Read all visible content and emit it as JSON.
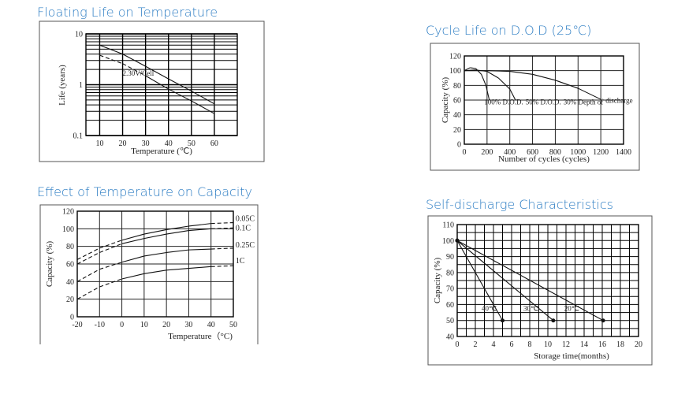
{
  "title_color": "#2b7cc3",
  "chart_data": [
    {
      "id": "floating",
      "type": "line",
      "title": "Floating Life on Temperature",
      "xlabel": "Temperature (℃)",
      "ylabel": "Life (years)",
      "xlim": [
        4,
        70
      ],
      "ylim": [
        0.1,
        10
      ],
      "yscale": "log",
      "xticks": [
        10,
        20,
        30,
        40,
        50,
        60
      ],
      "yticks": [
        {
          "v": 0.1,
          "label": "0.1"
        },
        {
          "v": 1,
          "label": "1"
        },
        {
          "v": 10,
          "label": "10"
        }
      ],
      "grid": true,
      "series": [
        {
          "x": [
            10,
            20,
            30,
            40,
            50,
            60
          ],
          "y": [
            6.0,
            4.0,
            2.3,
            1.3,
            0.75,
            0.42
          ]
        },
        {
          "x": [
            10,
            20,
            30,
            40,
            50,
            60
          ],
          "y": [
            3.8,
            2.6,
            1.5,
            0.82,
            0.48,
            0.27
          ]
        }
      ],
      "annotations": [
        {
          "text": "2.30V/Cell",
          "x": 20,
          "y": 1.5
        }
      ]
    },
    {
      "id": "cycle",
      "type": "line",
      "title": "Cycle Life on D.O.D (25℃)",
      "xlabel": "Number of cycles (cycles)",
      "ylabel": "Capacity (%)",
      "xlim": [
        0,
        1400
      ],
      "ylim": [
        0,
        120
      ],
      "xticks": [
        0,
        200,
        400,
        600,
        800,
        1000,
        1200,
        1400
      ],
      "yticks": [
        0,
        20,
        40,
        60,
        80,
        100,
        120
      ],
      "grid": true,
      "series": [
        {
          "name": "100% D.O.D.",
          "x": [
            0,
            50,
            100,
            150,
            190,
            220
          ],
          "y": [
            100,
            104,
            103,
            95,
            80,
            60
          ]
        },
        {
          "name": "50% D.O.D.",
          "x": [
            0,
            100,
            200,
            300,
            400,
            450
          ],
          "y": [
            100,
            101,
            99,
            90,
            75,
            60
          ]
        },
        {
          "name": "30% Depth of discharge",
          "x": [
            0,
            200,
            400,
            600,
            800,
            1000,
            1200
          ],
          "y": [
            100,
            100,
            99,
            95,
            87,
            76,
            61
          ]
        }
      ],
      "annotations": [
        {
          "text": "100% D.O.D.",
          "x": 175,
          "y": 54,
          "color": "#222222"
        },
        {
          "text": "50% D.O.D.",
          "x": 420,
          "y": 54,
          "color": "#222222"
        },
        {
          "text": "30% Depth of",
          "x": 830,
          "y": 54,
          "color": "#1d3f7a"
        },
        {
          "text": "discharge",
          "x": 1130,
          "y": 56,
          "color": "#7a2a4a"
        }
      ]
    },
    {
      "id": "temp-capacity",
      "type": "line",
      "title": "Effect of Temperature on Capacity",
      "xlabel": "Temperature（°C)",
      "ylabel": "Capacity  (%)",
      "xlim": [
        -20,
        50
      ],
      "ylim": [
        0,
        120
      ],
      "xticks": [
        -20,
        -10,
        0,
        10,
        20,
        30,
        40,
        50
      ],
      "yticks": [
        0,
        20,
        40,
        60,
        80,
        100,
        120
      ],
      "grid": true,
      "series": [
        {
          "name": "0.05C",
          "x": [
            -20,
            -10,
            0,
            10,
            20,
            30,
            40,
            50
          ],
          "y": [
            65,
            78,
            87,
            94,
            99,
            103,
            106,
            107
          ]
        },
        {
          "name": "0.1C",
          "x": [
            -20,
            -10,
            0,
            10,
            20,
            30,
            40,
            50
          ],
          "y": [
            60,
            73,
            83,
            89,
            94,
            98,
            100,
            101
          ]
        },
        {
          "name": "0.25C",
          "x": [
            -20,
            -10,
            0,
            10,
            20,
            30,
            40,
            50
          ],
          "y": [
            40,
            54,
            62,
            69,
            73,
            76,
            77,
            78
          ]
        },
        {
          "name": "1C",
          "x": [
            -20,
            -10,
            0,
            10,
            20,
            30,
            40,
            50
          ],
          "y": [
            20,
            34,
            43,
            49,
            53,
            55,
            57,
            58
          ]
        }
      ],
      "annotations": [
        {
          "text": "0.05C",
          "x": 51,
          "y": 109
        },
        {
          "text": "0.1C",
          "x": 51,
          "y": 101
        },
        {
          "text": "0.25C",
          "x": 51,
          "y": 79
        },
        {
          "text": "1C",
          "x": 51,
          "y": 61
        }
      ]
    },
    {
      "id": "self-discharge",
      "type": "line",
      "title": "Self-discharge Characteristics",
      "xlabel": "Storage time(months)",
      "ylabel": "Capacity (%)",
      "xlim": [
        0,
        20
      ],
      "ylim": [
        40,
        110
      ],
      "xticks": [
        0,
        2,
        4,
        6,
        8,
        10,
        12,
        14,
        16,
        18,
        20
      ],
      "yticks": [
        40,
        50,
        60,
        70,
        80,
        90,
        100,
        110
      ],
      "grid": true,
      "series": [
        {
          "name": "40℃",
          "x": [
            0,
            5
          ],
          "y": [
            100,
            50
          ]
        },
        {
          "name": "30℃",
          "x": [
            0,
            10.6
          ],
          "y": [
            100,
            50
          ]
        },
        {
          "name": "20℃",
          "x": [
            0,
            16.1
          ],
          "y": [
            100,
            50
          ]
        }
      ],
      "annotations": [
        {
          "text": "40℃",
          "x": 2.7,
          "y": 56
        },
        {
          "text": "30℃",
          "x": 7.3,
          "y": 56
        },
        {
          "text": "20℃",
          "x": 11.8,
          "y": 56
        }
      ]
    }
  ]
}
